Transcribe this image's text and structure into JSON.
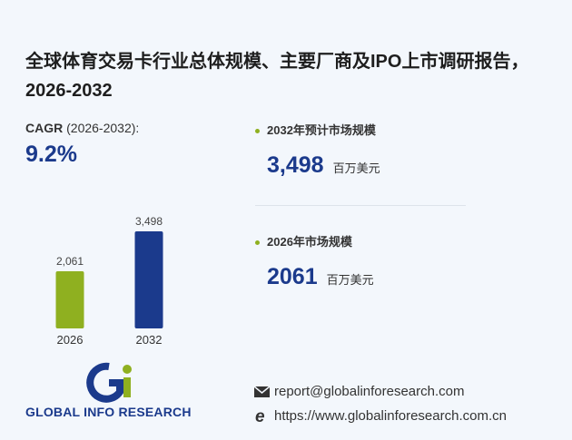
{
  "title": "全球体育交易卡行业总体规模、主要厂商及IPO上市调研报告，2026-2032",
  "cagr": {
    "label": "CAGR",
    "period": "(2026-2032):",
    "value": "9.2%"
  },
  "chart_data": {
    "type": "bar",
    "categories": [
      "2026",
      "2032"
    ],
    "values": [
      2061,
      3498
    ],
    "value_labels": [
      "2,061",
      "3,498"
    ],
    "colors": [
      "#8fb020",
      "#1b3a8c"
    ]
  },
  "stats": [
    {
      "label": "2032年预计市场规模",
      "value": "3,498",
      "unit": "百万美元"
    },
    {
      "label": "2026年市场规模",
      "value": "2061",
      "unit": "百万美元"
    }
  ],
  "logo": "GLOBAL INFO RESEARCH",
  "contact": {
    "email": "report@globalinforesearch.com",
    "website": "https://www.globalinforesearch.com.cn"
  }
}
